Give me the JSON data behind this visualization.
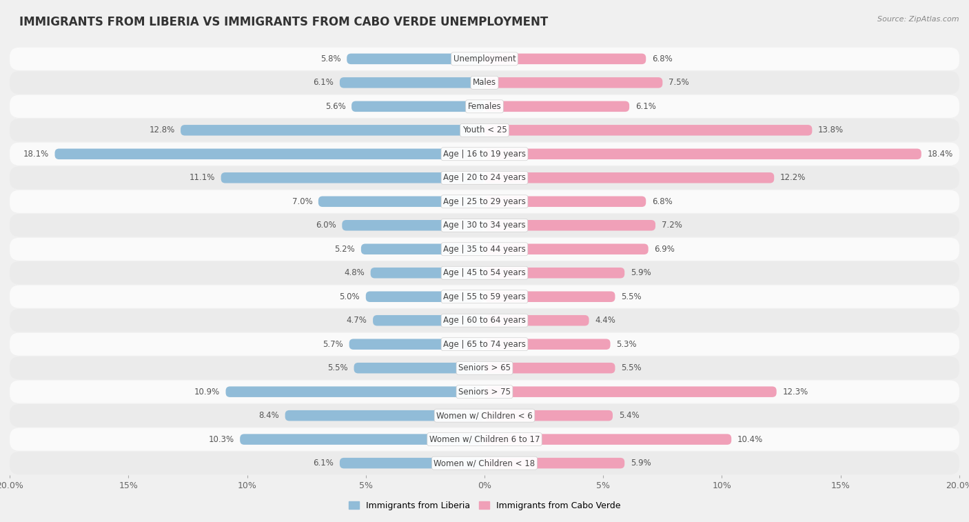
{
  "title": "IMMIGRANTS FROM LIBERIA VS IMMIGRANTS FROM CABO VERDE UNEMPLOYMENT",
  "source": "Source: ZipAtlas.com",
  "categories": [
    "Unemployment",
    "Males",
    "Females",
    "Youth < 25",
    "Age | 16 to 19 years",
    "Age | 20 to 24 years",
    "Age | 25 to 29 years",
    "Age | 30 to 34 years",
    "Age | 35 to 44 years",
    "Age | 45 to 54 years",
    "Age | 55 to 59 years",
    "Age | 60 to 64 years",
    "Age | 65 to 74 years",
    "Seniors > 65",
    "Seniors > 75",
    "Women w/ Children < 6",
    "Women w/ Children 6 to 17",
    "Women w/ Children < 18"
  ],
  "liberia_values": [
    5.8,
    6.1,
    5.6,
    12.8,
    18.1,
    11.1,
    7.0,
    6.0,
    5.2,
    4.8,
    5.0,
    4.7,
    5.7,
    5.5,
    10.9,
    8.4,
    10.3,
    6.1
  ],
  "caboverde_values": [
    6.8,
    7.5,
    6.1,
    13.8,
    18.4,
    12.2,
    6.8,
    7.2,
    6.9,
    5.9,
    5.5,
    4.4,
    5.3,
    5.5,
    12.3,
    5.4,
    10.4,
    5.9
  ],
  "liberia_color": "#91bcd8",
  "caboverde_color": "#f0a0b8",
  "background_color": "#f0f0f0",
  "row_color_light": "#fafafa",
  "row_color_dark": "#ebebeb",
  "xlim": 20.0,
  "legend_label_liberia": "Immigrants from Liberia",
  "legend_label_caboverde": "Immigrants from Cabo Verde",
  "title_fontsize": 12,
  "label_fontsize": 8.5,
  "tick_fontsize": 9,
  "value_fontsize": 8.5
}
